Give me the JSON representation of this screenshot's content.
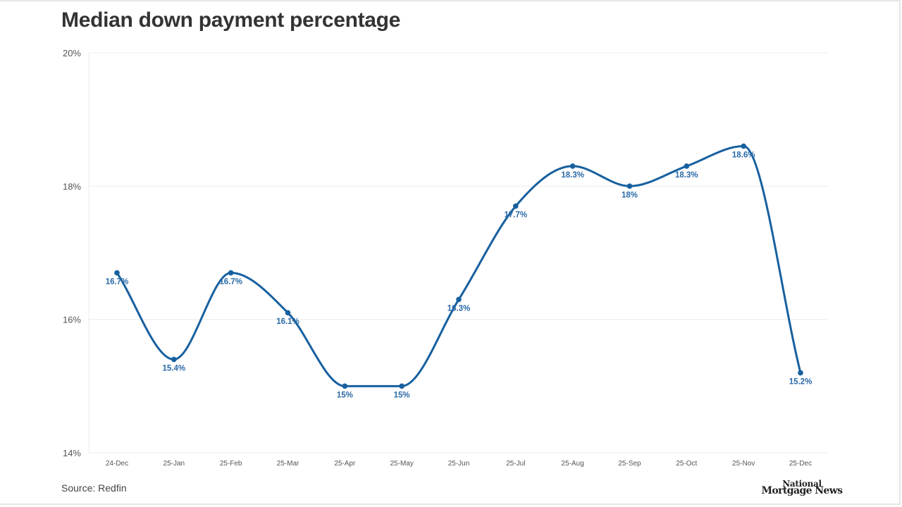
{
  "header": {
    "title": "Median down payment percentage"
  },
  "footer": {
    "source": "Source: Redfin",
    "logo_line1": "National",
    "logo_line2": "Mortgage News"
  },
  "colors": {
    "line": "#17609f",
    "label": "#2a6aa8",
    "grid": "#ececec",
    "axis_text": "#555555"
  },
  "chart_data": {
    "type": "line",
    "title": "Median down payment percentage",
    "xlabel": "",
    "ylabel": "",
    "categories": [
      "24-Dec",
      "25-Jan",
      "25-Feb",
      "25-Mar",
      "25-Apr",
      "25-May",
      "25-Jun",
      "25-Jul",
      "25-Aug",
      "25-Sep",
      "25-Oct",
      "25-Nov",
      "25-Dec"
    ],
    "series": [
      {
        "name": "Median down payment percentage",
        "values": [
          16.7,
          15.4,
          16.7,
          16.1,
          15,
          15,
          16.3,
          17.7,
          18.3,
          18,
          18.3,
          18.6,
          15.2
        ]
      }
    ],
    "data_labels": [
      "16.7%",
      "15.4%",
      "16.7%",
      "16.1%",
      "15%",
      "15%",
      "16.3%",
      "17.7%",
      "18.3%",
      "18%",
      "18.3%",
      "18.6%",
      "15.2%"
    ],
    "yticks": [
      14,
      16,
      18,
      20
    ],
    "ytick_labels": [
      "14%",
      "16%",
      "18%",
      "20%"
    ],
    "ylim": [
      14,
      20
    ],
    "grid": true,
    "legend": "none",
    "source": "Source: Redfin"
  }
}
